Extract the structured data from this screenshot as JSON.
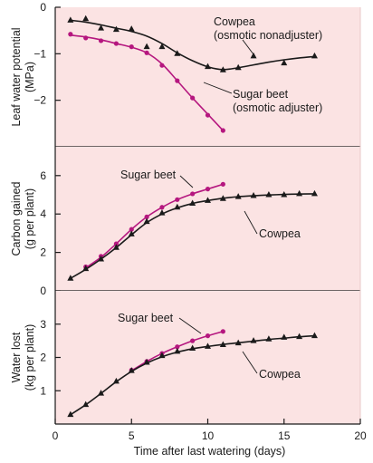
{
  "colors": {
    "panel_bg": "#fbe3e3",
    "cowpea": "#1a1a1a",
    "sugar_beet": "#b5177f",
    "axis": "#1a1a1a"
  },
  "x_axis": {
    "label": "Time after last watering (days)",
    "range": [
      0,
      20
    ],
    "ticks": [
      0,
      5,
      10,
      15,
      20
    ]
  },
  "chart_data": [
    {
      "type": "scatter",
      "name": "leaf-water-potential",
      "ylabel_lines": [
        "Leaf water potential",
        "(MPa)"
      ],
      "xlim": [
        0,
        20
      ],
      "ylim": [
        -3,
        0
      ],
      "yticks": [
        0,
        -1,
        -2
      ],
      "series": [
        {
          "name": "Cowpea",
          "label_lines": [
            "Cowpea",
            "(osmotic nonadjuster)"
          ],
          "marker": "triangle",
          "x": [
            1,
            2,
            3,
            4,
            5,
            6,
            7,
            8,
            10,
            11,
            12,
            13,
            15,
            17
          ],
          "y": [
            -0.28,
            -0.25,
            -0.45,
            -0.48,
            -0.47,
            -0.85,
            -0.85,
            -1.0,
            -1.28,
            -1.35,
            -1.3,
            -1.05,
            -1.2,
            -1.05
          ],
          "curve_x": [
            1,
            2,
            3,
            4,
            5,
            6,
            7,
            8,
            9,
            10,
            11,
            12,
            13,
            14,
            15,
            16,
            17
          ],
          "curve_y": [
            -0.28,
            -0.32,
            -0.38,
            -0.45,
            -0.52,
            -0.62,
            -0.78,
            -0.98,
            -1.15,
            -1.28,
            -1.34,
            -1.3,
            -1.24,
            -1.18,
            -1.13,
            -1.09,
            -1.06
          ]
        },
        {
          "name": "Sugar beet",
          "label_lines": [
            "Sugar beet",
            "(osmotic adjuster)"
          ],
          "marker": "circle",
          "x": [
            1,
            2,
            3,
            4,
            5,
            6,
            7,
            8,
            9,
            10,
            11
          ],
          "y": [
            -0.58,
            -0.66,
            -0.72,
            -0.78,
            -0.85,
            -0.98,
            -1.25,
            -1.58,
            -1.95,
            -2.32,
            -2.65
          ],
          "curve_x": [
            1,
            2,
            3,
            4,
            5,
            6,
            7,
            8,
            9,
            10,
            11
          ],
          "curve_y": [
            -0.6,
            -0.64,
            -0.7,
            -0.78,
            -0.86,
            -0.98,
            -1.22,
            -1.58,
            -1.95,
            -2.3,
            -2.65
          ]
        }
      ]
    },
    {
      "type": "scatter",
      "name": "carbon-gained",
      "ylabel_lines": [
        "Carbon gained",
        "(g per plant)"
      ],
      "xlim": [
        0,
        20
      ],
      "ylim": [
        0,
        7.5
      ],
      "yticks": [
        0,
        2,
        4,
        6
      ],
      "series": [
        {
          "name": "Sugar beet",
          "label_lines": [
            "Sugar beet"
          ],
          "marker": "circle",
          "x": [
            2,
            3,
            4,
            5,
            6,
            7,
            8,
            9,
            10,
            11
          ],
          "y": [
            1.25,
            1.8,
            2.45,
            3.2,
            3.85,
            4.35,
            4.75,
            5.05,
            5.3,
            5.55
          ],
          "curve_x": [
            2,
            3,
            4,
            5,
            6,
            7,
            8,
            9,
            10,
            11
          ],
          "curve_y": [
            1.2,
            1.75,
            2.45,
            3.2,
            3.85,
            4.35,
            4.75,
            5.05,
            5.3,
            5.55
          ]
        },
        {
          "name": "Cowpea",
          "label_lines": [
            "Cowpea"
          ],
          "marker": "triangle",
          "x": [
            1,
            2,
            3,
            4,
            5,
            6,
            7,
            8,
            9,
            10,
            11,
            12,
            13,
            14,
            15,
            16,
            17
          ],
          "y": [
            0.65,
            1.15,
            1.65,
            2.25,
            2.95,
            3.6,
            4.05,
            4.35,
            4.55,
            4.7,
            4.8,
            4.9,
            4.95,
            5.0,
            5.0,
            5.05,
            5.05
          ],
          "curve_x": [
            1,
            2,
            3,
            4,
            5,
            6,
            7,
            8,
            9,
            10,
            11,
            12,
            13,
            14,
            15,
            16,
            17
          ],
          "curve_y": [
            0.65,
            1.12,
            1.65,
            2.25,
            2.92,
            3.55,
            4.0,
            4.32,
            4.55,
            4.7,
            4.82,
            4.9,
            4.95,
            4.99,
            5.02,
            5.04,
            5.05
          ]
        }
      ]
    },
    {
      "type": "scatter",
      "name": "water-lost",
      "ylabel_lines": [
        "Water lost",
        "(kg per plant)"
      ],
      "xlim": [
        0,
        20
      ],
      "ylim": [
        0,
        4
      ],
      "yticks": [
        1,
        2,
        3
      ],
      "series": [
        {
          "name": "Sugar beet",
          "label_lines": [
            "Sugar beet"
          ],
          "marker": "circle",
          "x": [
            5,
            6,
            7,
            8,
            9,
            10,
            11
          ],
          "y": [
            1.62,
            1.88,
            2.12,
            2.32,
            2.5,
            2.65,
            2.78
          ],
          "curve_x": [
            5,
            6,
            7,
            8,
            9,
            10,
            11
          ],
          "curve_y": [
            1.6,
            1.88,
            2.12,
            2.32,
            2.5,
            2.65,
            2.78
          ]
        },
        {
          "name": "Cowpea",
          "label_lines": [
            "Cowpea"
          ],
          "marker": "triangle",
          "x": [
            1,
            2,
            3,
            4,
            5,
            6,
            7,
            8,
            9,
            10,
            11,
            12,
            13,
            14,
            15,
            16,
            17
          ],
          "y": [
            0.28,
            0.58,
            0.92,
            1.28,
            1.6,
            1.85,
            2.05,
            2.18,
            2.27,
            2.33,
            2.38,
            2.43,
            2.5,
            2.55,
            2.6,
            2.62,
            2.65
          ],
          "curve_x": [
            1,
            2,
            3,
            4,
            5,
            6,
            7,
            8,
            9,
            10,
            11,
            12,
            13,
            14,
            15,
            16,
            17
          ],
          "curve_y": [
            0.28,
            0.58,
            0.92,
            1.27,
            1.58,
            1.83,
            2.02,
            2.16,
            2.26,
            2.33,
            2.39,
            2.44,
            2.49,
            2.54,
            2.58,
            2.62,
            2.65
          ]
        }
      ]
    }
  ]
}
